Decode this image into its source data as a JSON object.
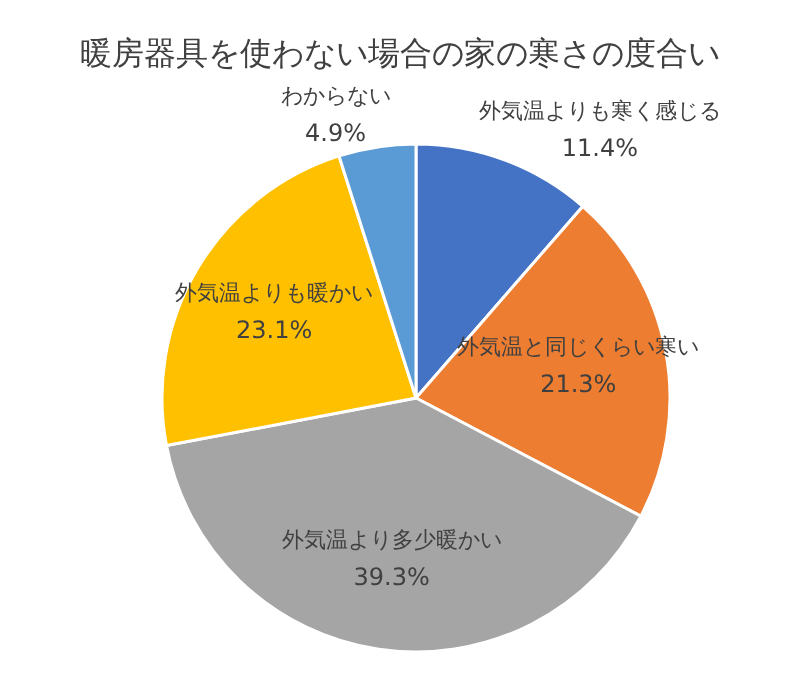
{
  "chart_data": {
    "type": "pie",
    "title": "暖房器具を使わない場合の家の寒さの度合い",
    "categories": [
      "外気温よりも寒く感じる",
      "外気温と同じくらい寒い",
      "外気温より多少暖かい",
      "外気温よりも暖かい",
      "わからない"
    ],
    "values": [
      11.4,
      21.3,
      39.3,
      23.1,
      4.9
    ],
    "colors": [
      "#4472c4",
      "#ed7d31",
      "#a5a5a5",
      "#ffc000",
      "#5b9bd5"
    ],
    "value_labels": [
      "11.4%",
      "21.3%",
      "39.3%",
      "23.1%",
      "4.9%"
    ]
  }
}
